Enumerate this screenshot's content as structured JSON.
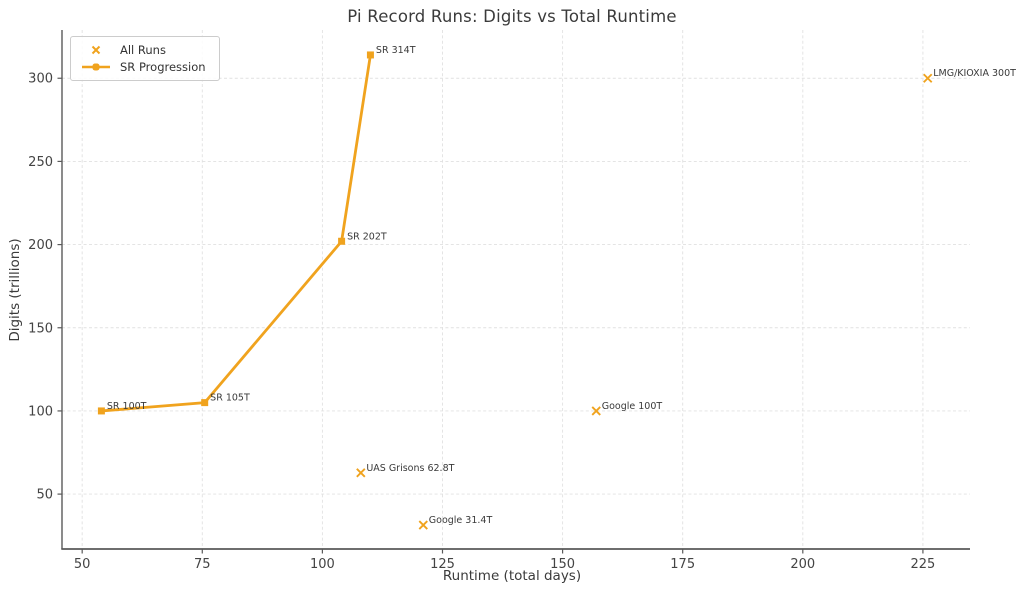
{
  "figure": {
    "background": "#ffffff"
  },
  "chart_data": {
    "type": "scatter",
    "title": "Pi Record Runs: Digits vs Total Runtime",
    "xlabel": "Runtime (total days)",
    "ylabel": "Digits (trillions)",
    "xlim": [
      45.8,
      234.8
    ],
    "ylim": [
      17,
      329
    ],
    "xticks": [
      50,
      75,
      100,
      125,
      150,
      175,
      200,
      225
    ],
    "yticks": [
      50,
      100,
      150,
      200,
      250,
      300
    ],
    "grid": true,
    "grid_style": "dashed",
    "grid_color": "#e1e1e1",
    "accent_color": "#F0A31E",
    "legend_position": "upper left",
    "legend": [
      {
        "label": "All Runs",
        "marker": "x"
      },
      {
        "label": "SR Progression",
        "marker": "line-square"
      }
    ],
    "points": [
      {
        "label": "SR 100T",
        "x": 54,
        "y": 100,
        "sr_progression": true
      },
      {
        "label": "SR 105T",
        "x": 75.5,
        "y": 105,
        "sr_progression": true
      },
      {
        "label": "SR 202T",
        "x": 104,
        "y": 202,
        "sr_progression": true
      },
      {
        "label": "SR 314T",
        "x": 110,
        "y": 314,
        "sr_progression": true
      },
      {
        "label": "UAS Grisons 62.8T",
        "x": 108,
        "y": 62.8,
        "sr_progression": false
      },
      {
        "label": "Google 31.4T",
        "x": 121,
        "y": 31.4,
        "sr_progression": false
      },
      {
        "label": "Google 100T",
        "x": 157,
        "y": 100,
        "sr_progression": false
      },
      {
        "label": "LMG/KIOXIA 300T",
        "x": 226,
        "y": 300,
        "sr_progression": false
      }
    ]
  }
}
